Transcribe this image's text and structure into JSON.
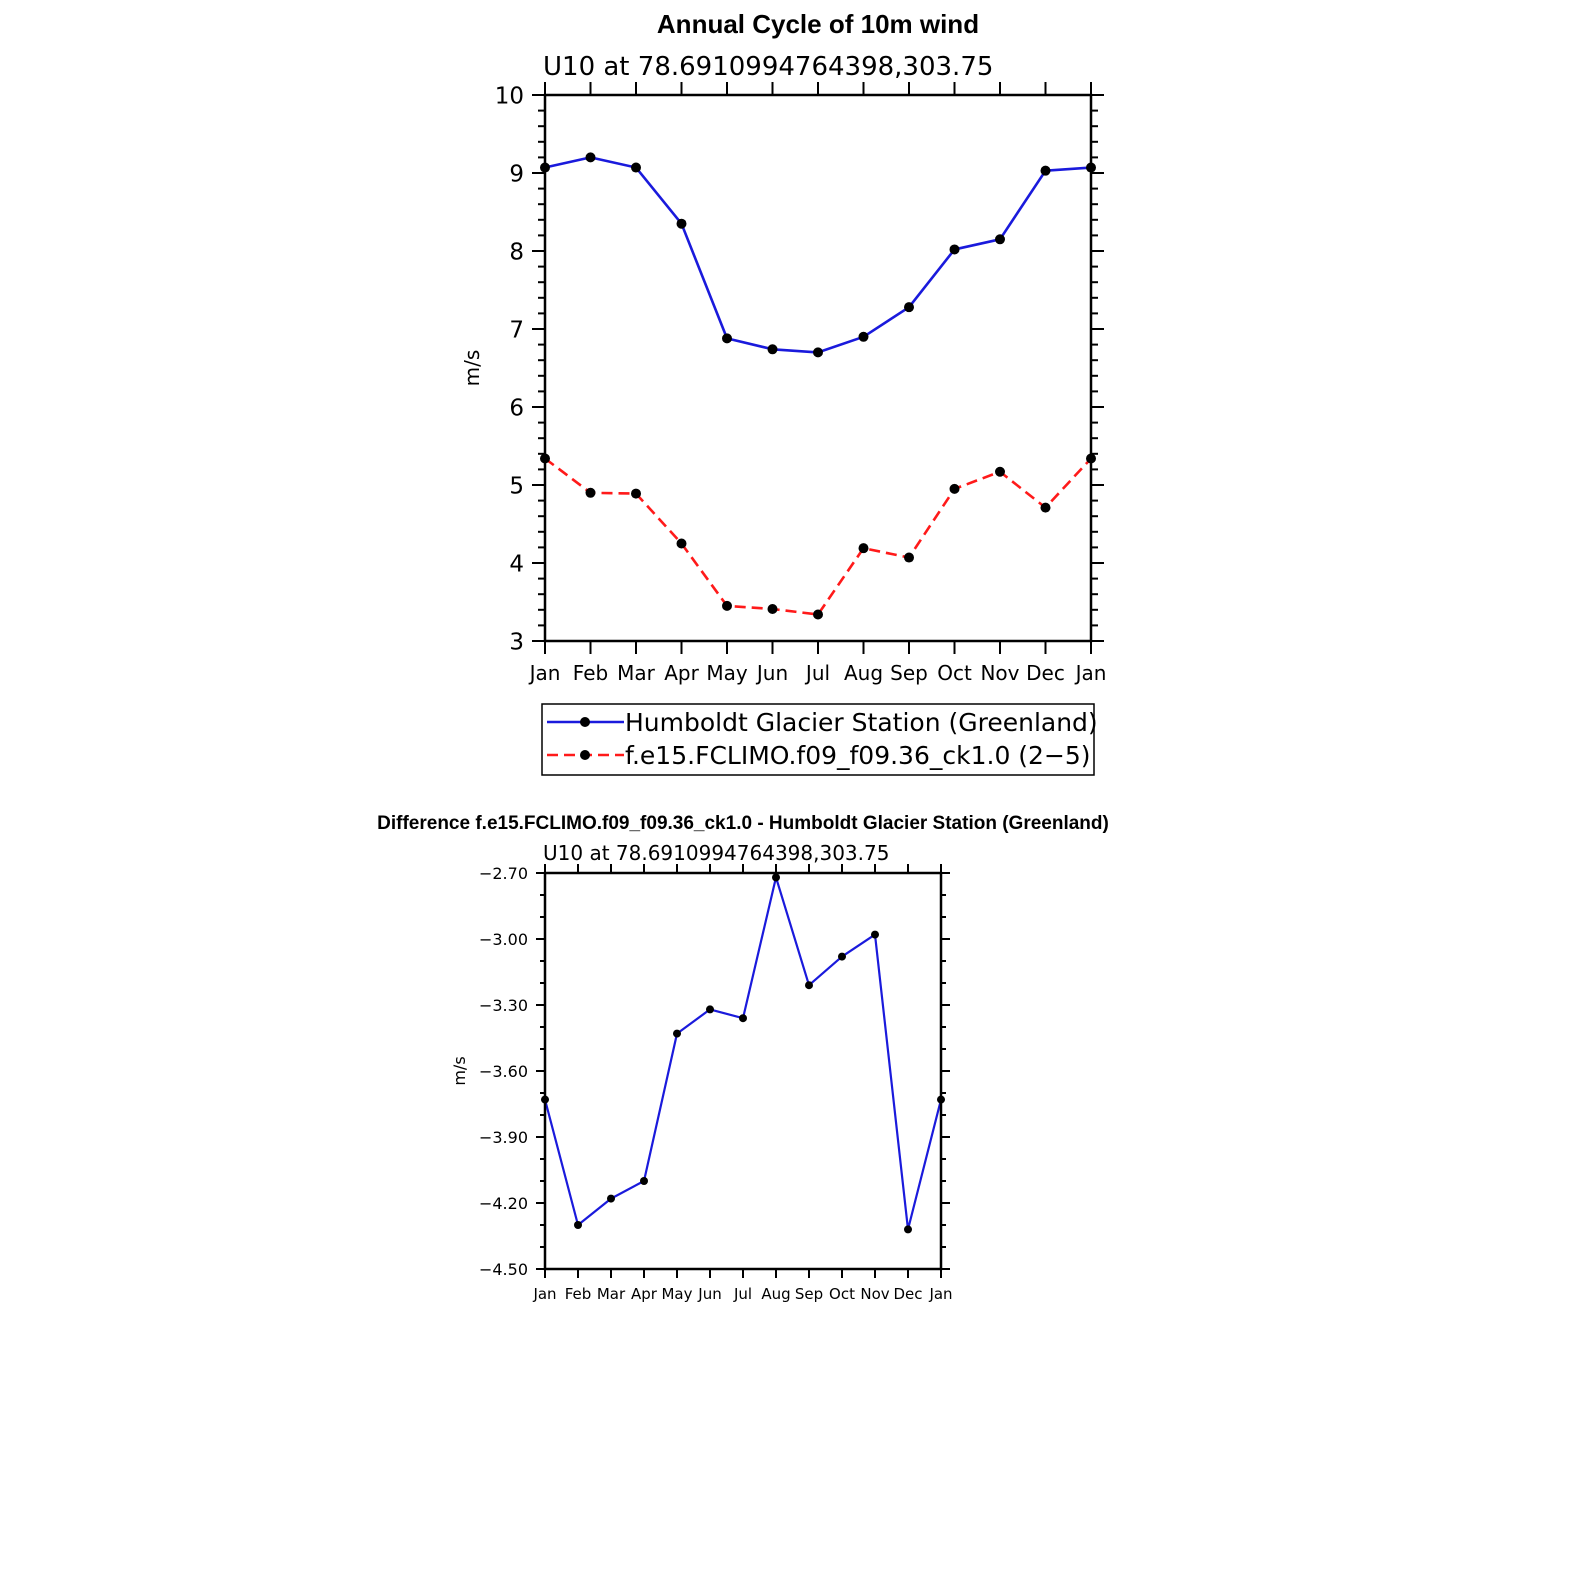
{
  "chart_data": [
    {
      "type": "line",
      "title": "Annual Cycle of 10m wind",
      "subtitle": "U10 at 78.6910994764398,303.75",
      "xlabel": "",
      "ylabel": "m/s",
      "categories": [
        "Jan",
        "Feb",
        "Mar",
        "Apr",
        "May",
        "Jun",
        "Jul",
        "Aug",
        "Sep",
        "Oct",
        "Nov",
        "Dec",
        "Jan"
      ],
      "ylim": [
        3,
        10
      ],
      "yticks": [
        "3",
        "4",
        "5",
        "6",
        "7",
        "8",
        "9",
        "10"
      ],
      "legend_position": "bottom",
      "series": [
        {
          "name": "Humboldt Glacier Station (Greenland)",
          "color": "#1a1adc",
          "dash": "solid",
          "values": [
            9.07,
            9.2,
            9.07,
            8.35,
            6.88,
            6.74,
            6.7,
            6.9,
            7.28,
            8.02,
            8.15,
            9.03,
            9.07
          ]
        },
        {
          "name": "f.e15.FCLIMO.f09_f09.36_ck1.0 (2−5)",
          "color": "#ff1a1a",
          "dash": "dashed",
          "values": [
            5.34,
            4.9,
            4.89,
            4.25,
            3.45,
            3.41,
            3.34,
            4.19,
            4.07,
            4.95,
            5.17,
            4.71,
            5.34
          ]
        }
      ]
    },
    {
      "type": "line",
      "title": "Difference f.e15.FCLIMO.f09_f09.36_ck1.0 - Humboldt Glacier Station (Greenland)",
      "subtitle": "U10 at 78.6910994764398,303.75",
      "xlabel": "",
      "ylabel": "m/s",
      "categories": [
        "Jan",
        "Feb",
        "Mar",
        "Apr",
        "May",
        "Jun",
        "Jul",
        "Aug",
        "Sep",
        "Oct",
        "Nov",
        "Dec",
        "Jan"
      ],
      "ylim": [
        -4.5,
        -2.7
      ],
      "yticks": [
        "−4.50",
        "−4.20",
        "−3.90",
        "−3.60",
        "−3.30",
        "−3.00",
        "−2.70"
      ],
      "series": [
        {
          "color": "#1a1adc",
          "dash": "solid",
          "values": [
            -3.73,
            -4.3,
            -4.18,
            -4.1,
            -3.43,
            -3.32,
            -3.36,
            -2.72,
            -3.21,
            -3.08,
            -2.98,
            -4.32,
            -3.73
          ]
        }
      ]
    }
  ]
}
